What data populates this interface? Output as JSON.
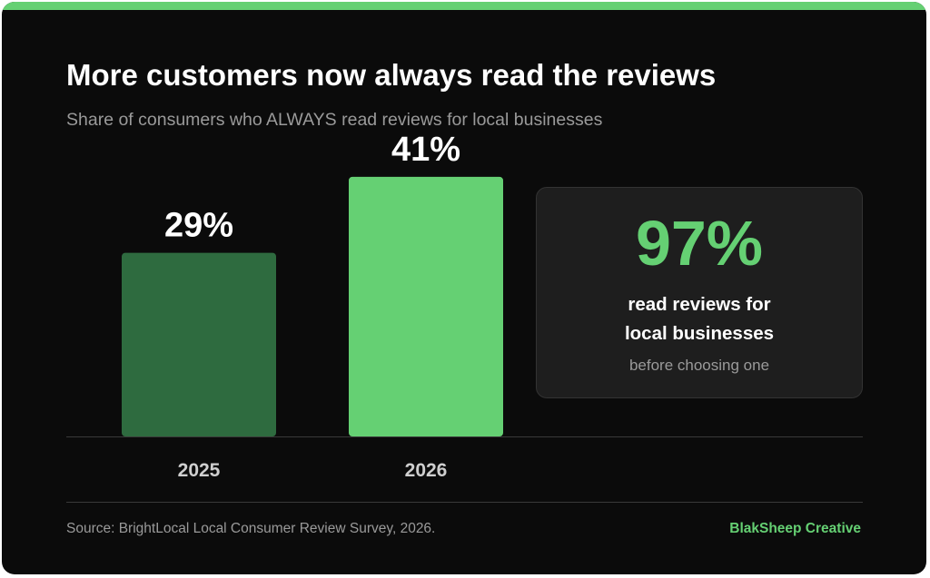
{
  "title": "More customers now always read the reviews",
  "subtitle": "Share of consumers who ALWAYS read reviews for local businesses",
  "chart_data": {
    "type": "bar",
    "categories": [
      "2025",
      "2026"
    ],
    "values": [
      29,
      41
    ],
    "data_labels": [
      "29%",
      "41%"
    ],
    "bar_colors": [
      "#2e6b3f",
      "#65d073"
    ],
    "ylim": [
      0,
      50
    ],
    "grid": false,
    "legend": "none",
    "title": "",
    "xlabel": "",
    "ylabel": ""
  },
  "stat": {
    "value": "97%",
    "label_line1": "read reviews for",
    "label_line2": "local businesses",
    "note": "before choosing one"
  },
  "footer": {
    "source": "Source: BrightLocal Local Consumer Review Survey, 2026.",
    "brand": "BlakSheep Creative"
  },
  "colors": {
    "accent": "#65d073",
    "background": "#0b0b0b",
    "panel": "#1e1e1e",
    "muted_text": "#9a9a9a"
  }
}
